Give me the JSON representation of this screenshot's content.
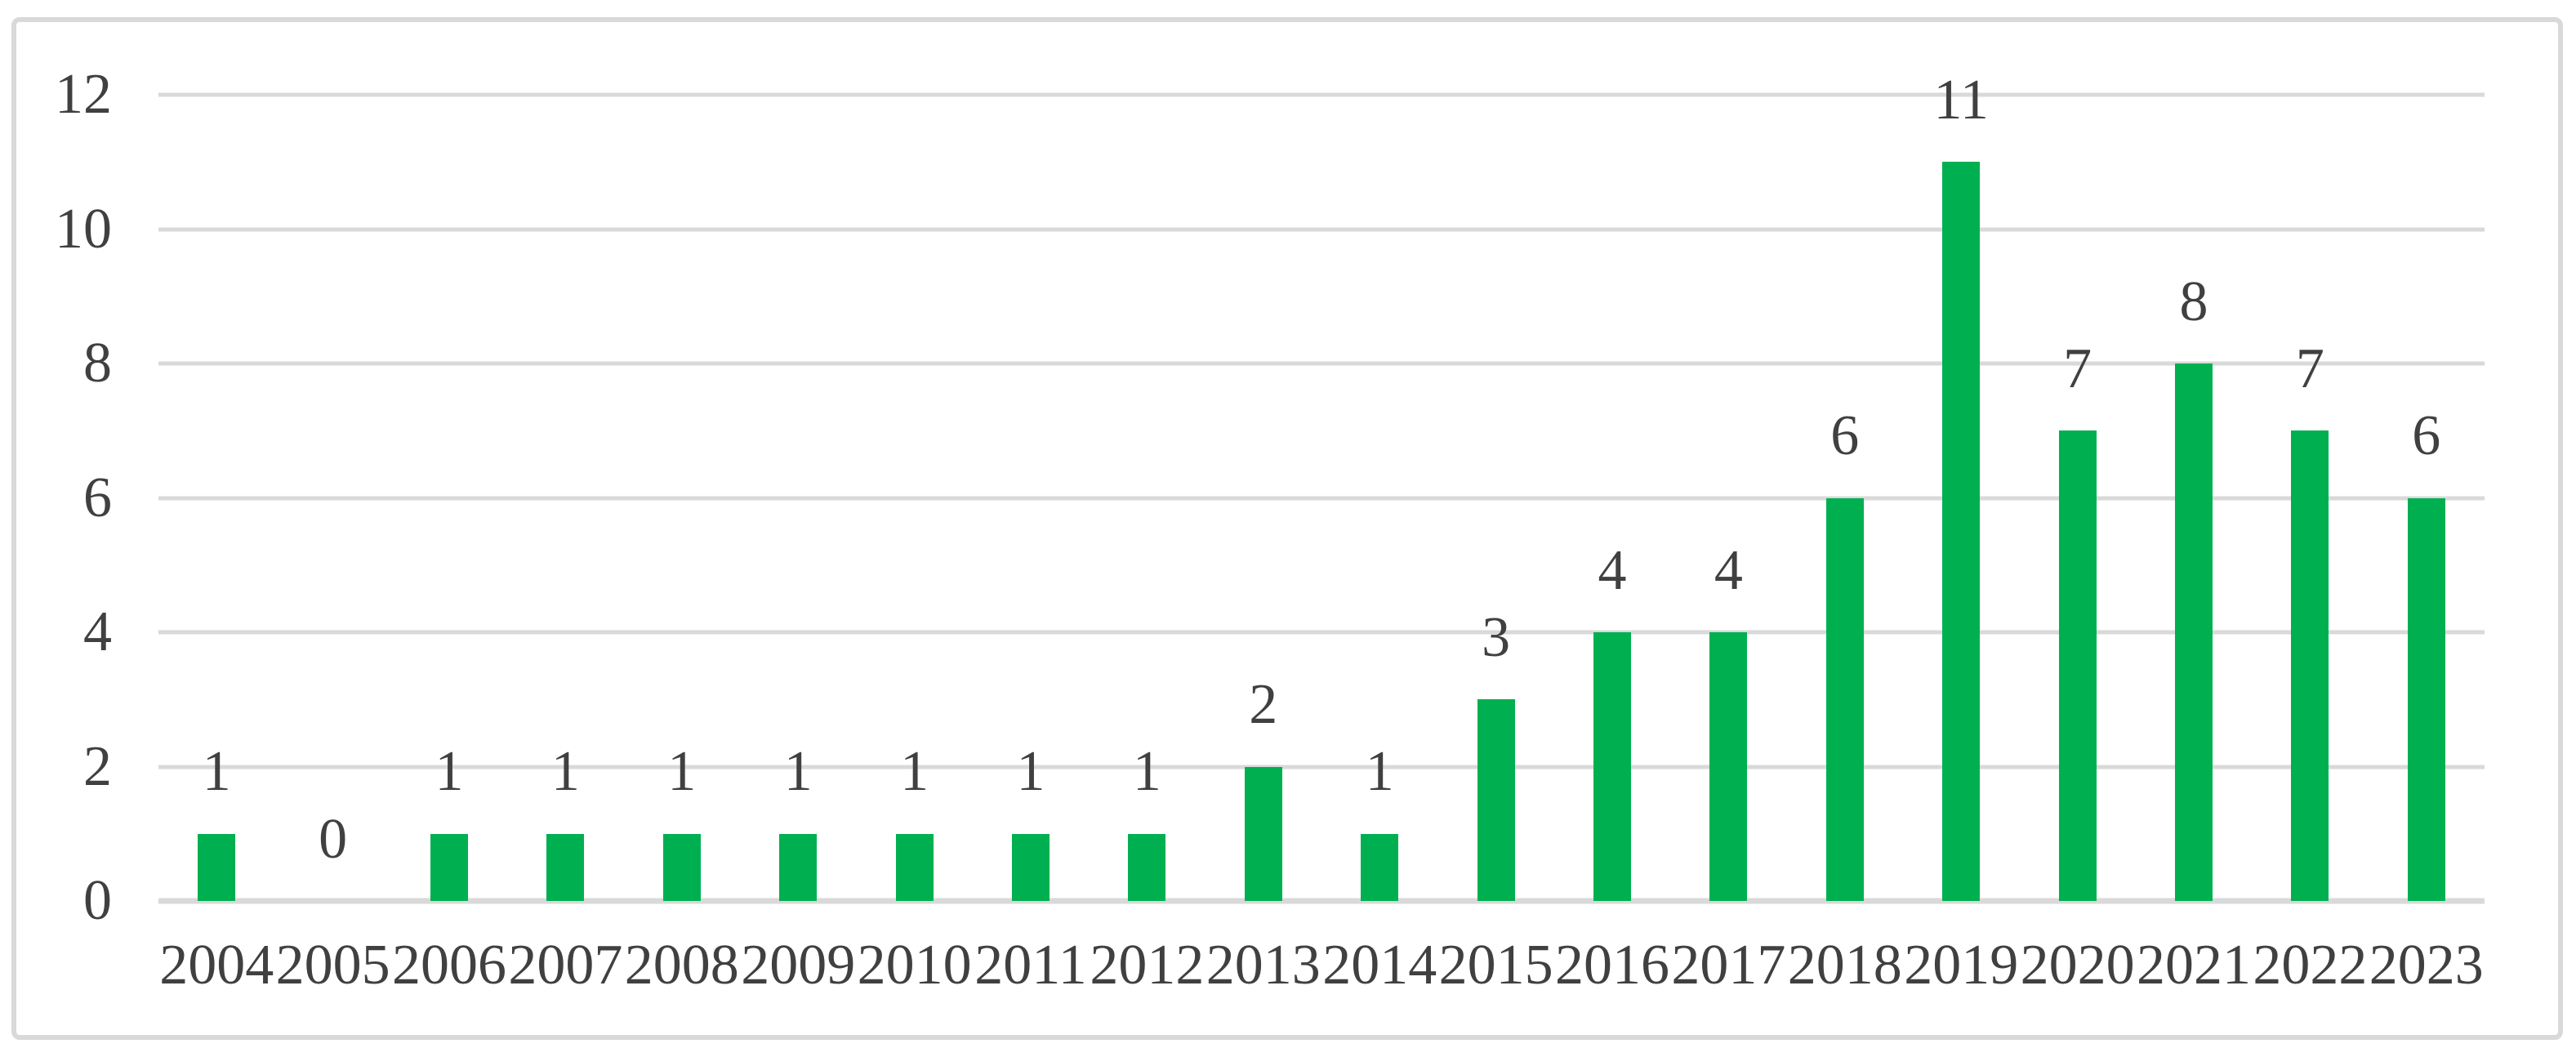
{
  "chart_data": {
    "type": "bar",
    "title": "",
    "xlabel": "",
    "ylabel": "",
    "categories": [
      "2004",
      "2005",
      "2006",
      "2007",
      "2008",
      "2009",
      "2010",
      "2011",
      "2012",
      "2013",
      "2014",
      "2015",
      "2016",
      "2017",
      "2018",
      "2019",
      "2020",
      "2021",
      "2022",
      "2023"
    ],
    "values": [
      1,
      0,
      1,
      1,
      1,
      1,
      1,
      1,
      1,
      2,
      1,
      3,
      4,
      4,
      6,
      11,
      7,
      8,
      7,
      6
    ],
    "data_labels": [
      "1",
      "0",
      "1",
      "1",
      "1",
      "1",
      "1",
      "1",
      "1",
      "2",
      "1",
      "3",
      "4",
      "4",
      "6",
      "11",
      "7",
      "8",
      "7",
      "6"
    ],
    "ylim": [
      0,
      12
    ],
    "yticks": [
      0,
      2,
      4,
      6,
      8,
      10,
      12
    ],
    "ytick_labels": [
      "0",
      "2",
      "4",
      "6",
      "8",
      "10",
      "12"
    ],
    "grid": true,
    "legend_position": "none",
    "colors": {
      "bar": "#00b050",
      "gridline": "#d9d9d9",
      "axis_line": "#d9d9d9",
      "frame_border": "#d9d9d9",
      "text": "#404040",
      "background": "#ffffff"
    }
  }
}
